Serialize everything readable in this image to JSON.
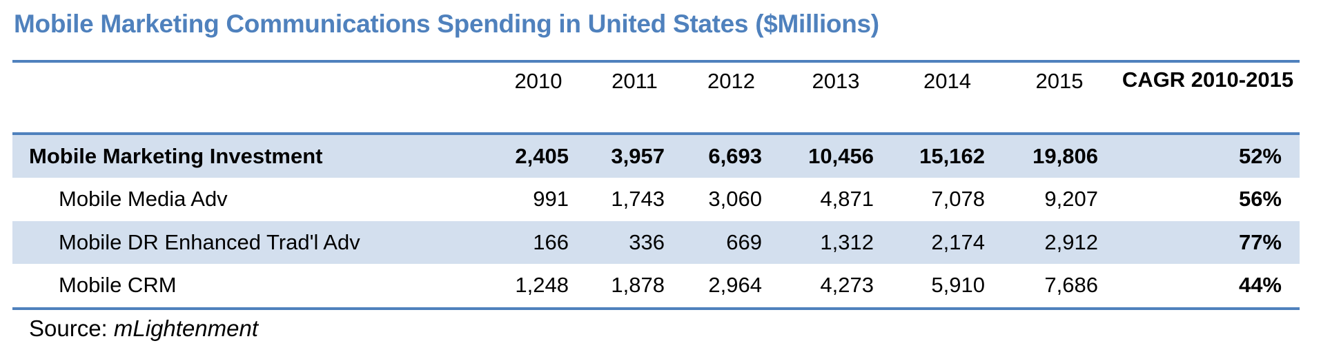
{
  "title": "Mobile Marketing Communications Spending in United States ($Millions)",
  "header": {
    "years": [
      "2010",
      "2011",
      "2012",
      "2013",
      "2014",
      "2015"
    ],
    "cagr_label": "CAGR  2010-2015"
  },
  "rows": [
    {
      "label": "Mobile Marketing Investment",
      "values": [
        "2,405",
        "3,957",
        "6,693",
        "10,456",
        "15,162",
        "19,806"
      ],
      "cagr": "52%"
    },
    {
      "label": "Mobile Media Adv",
      "values": [
        "991",
        "1,743",
        "3,060",
        "4,871",
        "7,078",
        "9,207"
      ],
      "cagr": "56%"
    },
    {
      "label": "Mobile DR Enhanced Trad'l Adv",
      "values": [
        "166",
        "336",
        "669",
        "1,312",
        "2,174",
        "2,912"
      ],
      "cagr": "77%"
    },
    {
      "label": "Mobile CRM",
      "values": [
        "1,248",
        "1,878",
        "2,964",
        "4,273",
        "5,910",
        "7,686"
      ],
      "cagr": "44%"
    }
  ],
  "source": {
    "prefix": "Source: ",
    "name": "mLightenment"
  },
  "colors": {
    "accent": "#4F81BD",
    "band": "#D3DFEE"
  }
}
